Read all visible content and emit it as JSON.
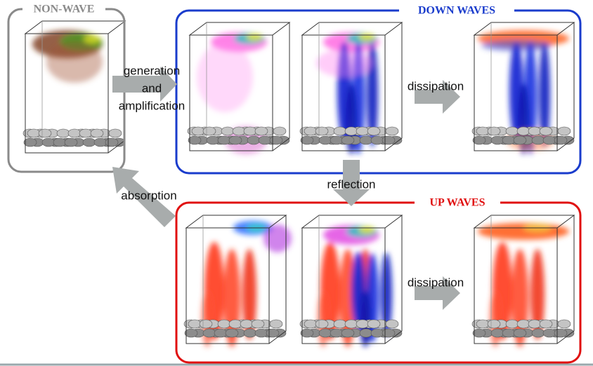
{
  "panels": {
    "non_wave": {
      "title": "NON-WAVE"
    },
    "down_waves": {
      "title": "DOWN WAVES"
    },
    "up_waves": {
      "title": "UP WAVES"
    }
  },
  "arrows": {
    "generation": {
      "lines": [
        "generation",
        "and",
        "amplification"
      ]
    },
    "down_dissipation": {
      "label": "dissipation"
    },
    "up_dissipation": {
      "label": "dissipation"
    },
    "reflection": {
      "label": "reflection"
    },
    "absorption": {
      "label": "absorption"
    }
  }
}
